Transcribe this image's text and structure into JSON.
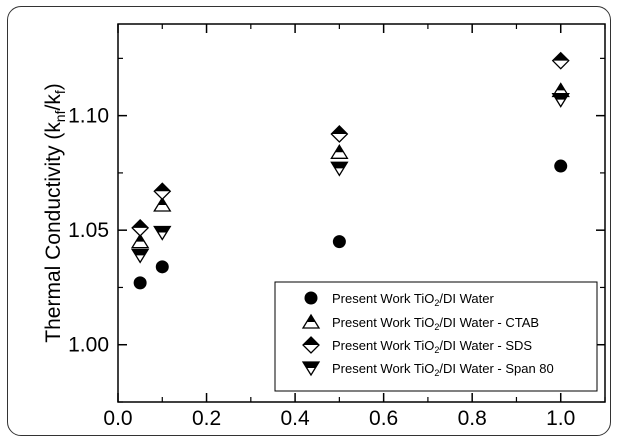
{
  "chart_data": {
    "type": "scatter",
    "ylabel_parts": {
      "main": "Thermal Conductivity (k",
      "sub1": "nf",
      "slash": "/k",
      "sub2": "f",
      "close": ")"
    },
    "xlim": [
      0.0,
      1.1
    ],
    "ylim": [
      0.975,
      1.14
    ],
    "x_ticks": [
      0.0,
      0.2,
      0.4,
      0.6,
      0.8,
      1.0
    ],
    "x_tick_labels": [
      "0.0",
      "0.2",
      "0.4",
      "0.6",
      "0.8",
      "1.0"
    ],
    "y_ticks": [
      1.0,
      1.05,
      1.1
    ],
    "y_tick_labels": [
      "1.00",
      "1.05",
      "1.10"
    ],
    "grid": false,
    "legend_position": "bottom-right",
    "series": [
      {
        "legend_pre": "Present Work TiO",
        "legend_sub": "2",
        "legend_post": "/DI Water",
        "marker": "circle",
        "x": [
          0.05,
          0.1,
          0.5,
          1.0
        ],
        "y": [
          1.027,
          1.034,
          1.045,
          1.078
        ]
      },
      {
        "legend_pre": "Present Work TiO",
        "legend_sub": "2",
        "legend_post": "/DI Water - CTAB",
        "marker": "triangle-up-half",
        "x": [
          0.05,
          0.1,
          0.5,
          1.0
        ],
        "y": [
          1.045,
          1.061,
          1.084,
          1.111
        ]
      },
      {
        "legend_pre": "Present Work TiO",
        "legend_sub": "2",
        "legend_post": "/DI Water - SDS",
        "marker": "diamond-half",
        "x": [
          0.05,
          0.1,
          0.5,
          1.0
        ],
        "y": [
          1.051,
          1.067,
          1.092,
          1.124
        ]
      },
      {
        "legend_pre": "Present Work TiO",
        "legend_sub": "2",
        "legend_post": "/DI Water - Span 80",
        "marker": "triangle-down-half",
        "x": [
          0.05,
          0.1,
          0.5,
          1.0
        ],
        "y": [
          1.039,
          1.049,
          1.077,
          1.107
        ]
      }
    ]
  }
}
